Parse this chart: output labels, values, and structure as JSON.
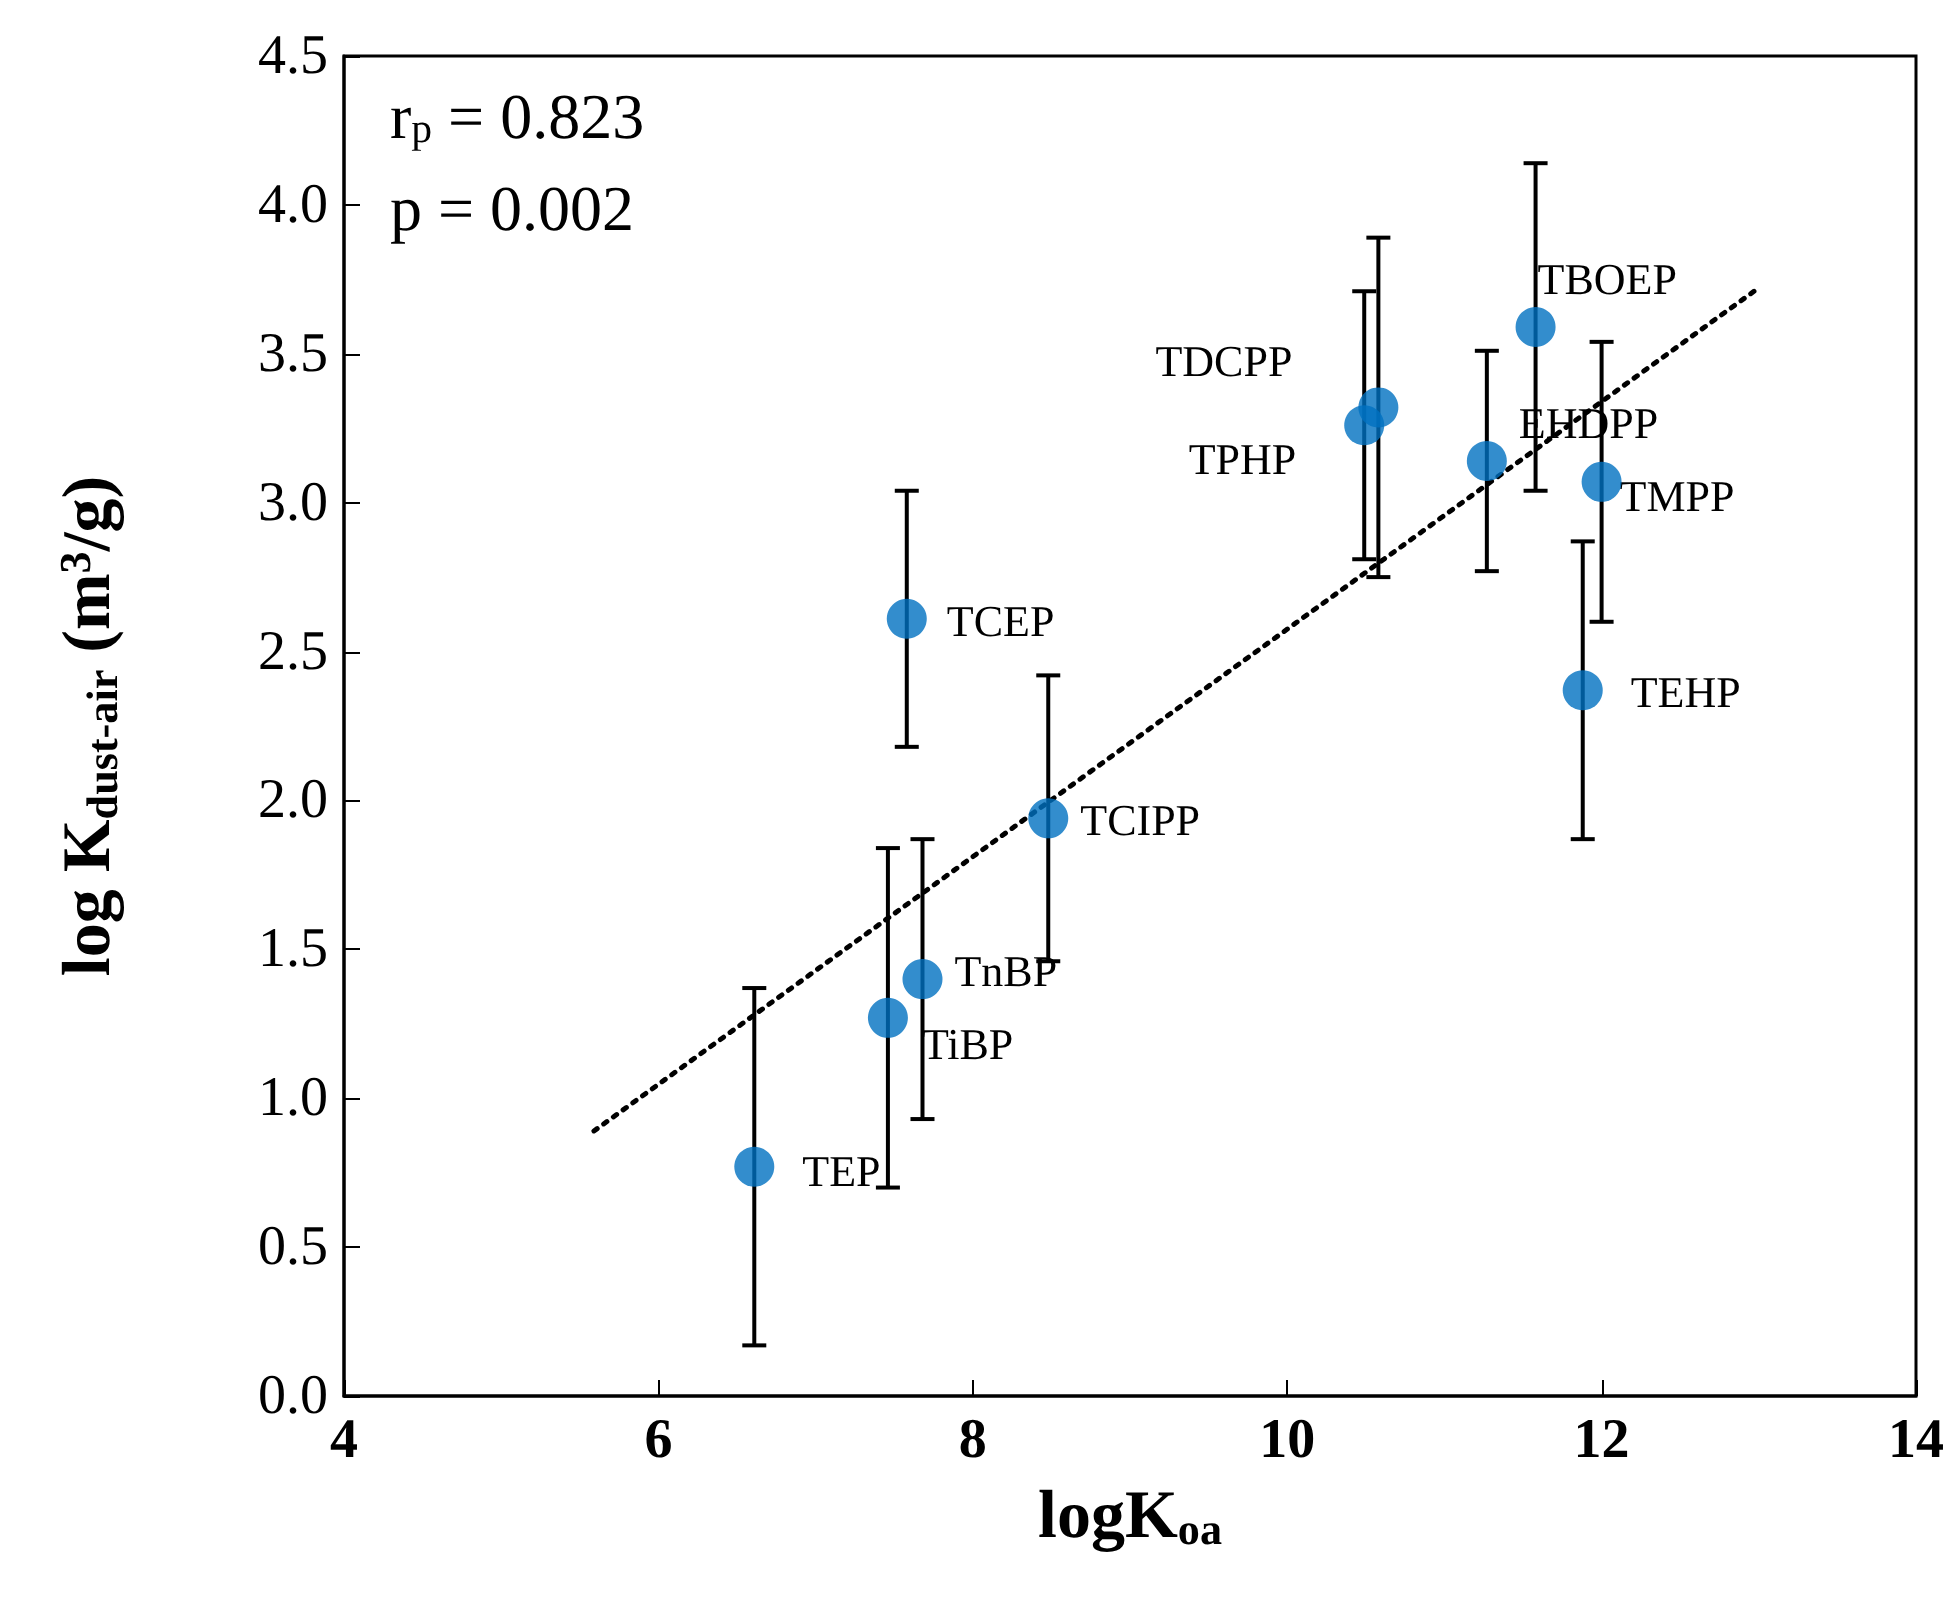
{
  "chart_data": {
    "type": "scatter",
    "xlabel": "logK$_{oa}$",
    "ylabel": "log K$_{dust-air}$ (m$^{3}$/g)",
    "xlim": [
      4,
      14
    ],
    "xticks": [
      4,
      6,
      8,
      10,
      12,
      14
    ],
    "ylim": [
      0,
      4.5
    ],
    "yticks": [
      {
        "value": 0,
        "label": "0.0"
      },
      {
        "value": 0.5,
        "label": "0.5"
      },
      {
        "value": 1,
        "label": "1.0"
      },
      {
        "value": 1.5,
        "label": "1.5"
      },
      {
        "value": 2,
        "label": "2.0"
      },
      {
        "value": 2.5,
        "label": "2.5"
      },
      {
        "value": 3,
        "label": "3.0"
      },
      {
        "value": 3.5,
        "label": "3.5"
      },
      {
        "value": 4,
        "label": "4.0"
      },
      {
        "value": 4.5,
        "label": "4.5"
      }
    ],
    "grid": false,
    "marker": "circle",
    "series": [
      {
        "color": "#0070c0",
        "x": [
          6.61,
          7.46,
          7.68,
          7.58,
          8.48,
          10.49,
          10.58,
          11.27,
          11.58,
          12.0,
          11.88
        ],
        "values": [
          0.77,
          1.27,
          1.4,
          2.61,
          1.94,
          3.26,
          3.32,
          3.14,
          3.59,
          3.07,
          2.37
        ],
        "errors": [
          0.6,
          0.57,
          0.47,
          0.43,
          0.48,
          0.45,
          0.57,
          0.37,
          0.55,
          0.47,
          0.5
        ]
      },
      {
        "type": "line",
        "color": "#000000",
        "line_style": "dotted",
        "marker": "none",
        "x": [
          5.59,
          12.97
        ],
        "values": [
          0.89,
          3.71
        ]
      }
    ],
    "annotations": [
      "r$_{p}$ = 0.823",
      "p = 0.002",
      {
        "text": "TEP",
        "x": 6.61,
        "y": 0.77
      },
      {
        "text": "TiBP",
        "x": 7.46,
        "y": 1.27
      },
      {
        "text": "TnBP",
        "x": 7.68,
        "y": 1.4
      },
      {
        "text": "TCEP",
        "x": 7.58,
        "y": 2.61
      },
      {
        "text": "TCIPP",
        "x": 8.48,
        "y": 1.94
      },
      {
        "text": "TPHP",
        "x": 10.49,
        "y": 3.26
      },
      {
        "text": "TDCPP",
        "x": 10.58,
        "y": 3.32
      },
      {
        "text": "EHDPP",
        "x": 11.27,
        "y": 3.14
      },
      {
        "text": "TBOEP",
        "x": 11.58,
        "y": 3.59
      },
      {
        "text": "TMPP",
        "x": 12.0,
        "y": 3.07
      },
      {
        "text": "TEHP",
        "x": 11.88,
        "y": 2.37
      }
    ]
  }
}
